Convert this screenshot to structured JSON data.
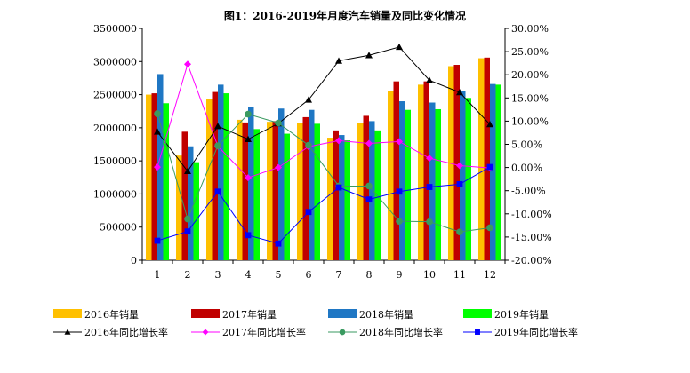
{
  "chart_data": {
    "type": "bar",
    "title": "图1：2016-2019年月度汽车销量及同比变化情况",
    "categories": [
      "1",
      "2",
      "3",
      "4",
      "5",
      "6",
      "7",
      "8",
      "9",
      "10",
      "11",
      "12"
    ],
    "y_left": {
      "min": 0,
      "max": 3500000,
      "ticks": [
        "0",
        "500000",
        "1000000",
        "1500000",
        "2000000",
        "2500000",
        "3000000",
        "3500000"
      ]
    },
    "y_right": {
      "min": -20,
      "max": 30,
      "ticks": [
        "-20.00%",
        "-15.00%",
        "-10.00%",
        "-5.00%",
        "0.00%",
        "5.00%",
        "10.00%",
        "15.00%",
        "20.00%",
        "25.00%",
        "30.00%"
      ]
    },
    "series": [
      {
        "name": "2016年销量",
        "kind": "bar",
        "color": "#FFC000",
        "values": [
          2500000,
          1580000,
          2430000,
          2120000,
          2090000,
          2070000,
          1850000,
          2070000,
          2550000,
          2650000,
          2930000,
          3050000
        ]
      },
      {
        "name": "2017年销量",
        "kind": "bar",
        "color": "#C00000",
        "values": [
          2520000,
          1940000,
          2540000,
          2080000,
          2100000,
          2160000,
          1960000,
          2180000,
          2700000,
          2700000,
          2950000,
          3060000
        ]
      },
      {
        "name": "2018年销量",
        "kind": "bar",
        "color": "#1F77C4",
        "values": [
          2810000,
          1720000,
          2650000,
          2320000,
          2290000,
          2270000,
          1890000,
          2100000,
          2400000,
          2380000,
          2550000,
          2660000
        ]
      },
      {
        "name": "2019年销量",
        "kind": "bar",
        "color": "#00FF00",
        "values": [
          2370000,
          1480000,
          2520000,
          1980000,
          1910000,
          2060000,
          1810000,
          1960000,
          2270000,
          2280000,
          2450000,
          2650000
        ]
      },
      {
        "name": "2016年同比增长率",
        "kind": "line",
        "color": "#000000",
        "marker": "triangle",
        "values": [
          7.7,
          -0.8,
          8.9,
          6.1,
          9.5,
          14.6,
          23.0,
          24.2,
          26.0,
          18.8,
          16.2,
          9.3
        ]
      },
      {
        "name": "2017年同比增长率",
        "kind": "line",
        "color": "#FF00FF",
        "marker": "diamond",
        "values": [
          0.1,
          22.3,
          4.6,
          -2.2,
          0.0,
          4.5,
          5.8,
          5.2,
          5.6,
          2.0,
          0.4,
          -0.1
        ]
      },
      {
        "name": "2018年同比增长率",
        "kind": "line",
        "color": "#3A9A60",
        "marker": "circle",
        "values": [
          11.6,
          -11.1,
          4.7,
          11.5,
          9.6,
          4.8,
          -4.0,
          -4.0,
          -11.6,
          -11.7,
          -13.9,
          -13.0
        ]
      },
      {
        "name": "2019年同比增长率",
        "kind": "line",
        "color": "#0000FF",
        "marker": "square",
        "values": [
          -15.8,
          -13.8,
          -5.2,
          -14.6,
          -16.4,
          -9.6,
          -4.3,
          -6.9,
          -5.2,
          -4.2,
          -3.6,
          0.1
        ]
      }
    ],
    "legend_position": "bottom"
  }
}
